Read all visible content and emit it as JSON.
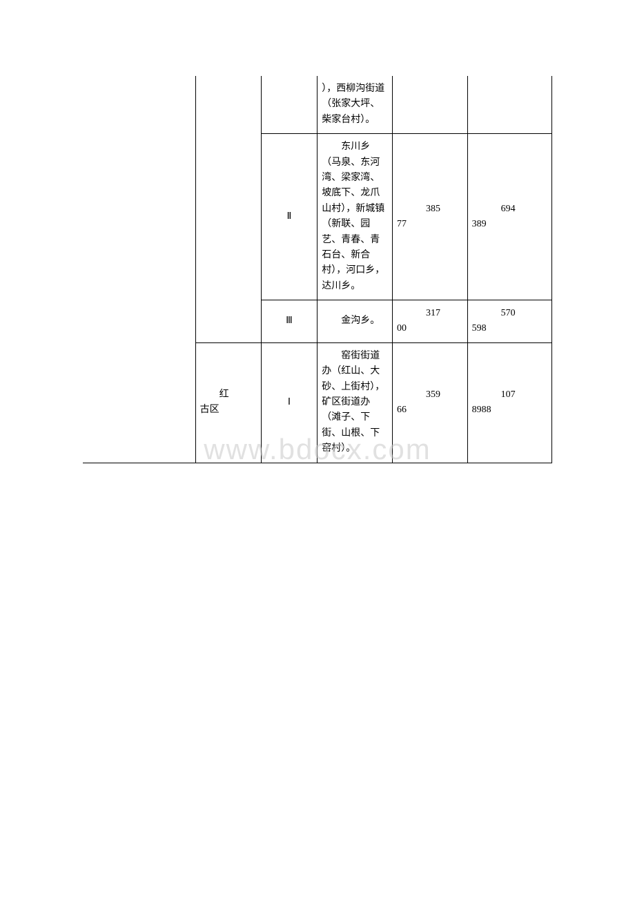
{
  "watermark": "www.bdocx.com",
  "table": {
    "border_color": "#000000",
    "background_color": "#ffffff",
    "font_size": 14,
    "rows": [
      {
        "col1": "",
        "col2": "",
        "col3": "",
        "col4": "），西柳沟街道（张家大坪、柴家台村）。",
        "col5_a": "",
        "col5_b": "",
        "col6_a": "",
        "col6_b": ""
      },
      {
        "col1": "",
        "col2": "",
        "col3": "Ⅱ",
        "col4_indent": "东",
        "col4_rest": "川乡（马泉、东河湾、梁家湾、坡底下、龙爪山村），新城镇（新联、园艺、青春、青石台、新合村），河口乡，达川乡。",
        "col5_a": "385",
        "col5_b": "77",
        "col6_a": "694",
        "col6_b": "389"
      },
      {
        "col1": "",
        "col2": "",
        "col3": "Ⅲ",
        "col4_indent": "金",
        "col4_rest": "沟乡。",
        "col5_a": "317",
        "col5_b": "00",
        "col6_a": "570",
        "col6_b": "598"
      },
      {
        "col1": "",
        "col2_indent": "红",
        "col2_rest": "古区",
        "col3": "Ⅰ",
        "col4_indent": "窑",
        "col4_rest": "街街道办（红山、大砂、上街村），矿区街道办（滩子、下街、山根、下窑村）。",
        "col5_a": "359",
        "col5_b": "66",
        "col6_a": "107",
        "col6_b": "8988"
      }
    ]
  }
}
